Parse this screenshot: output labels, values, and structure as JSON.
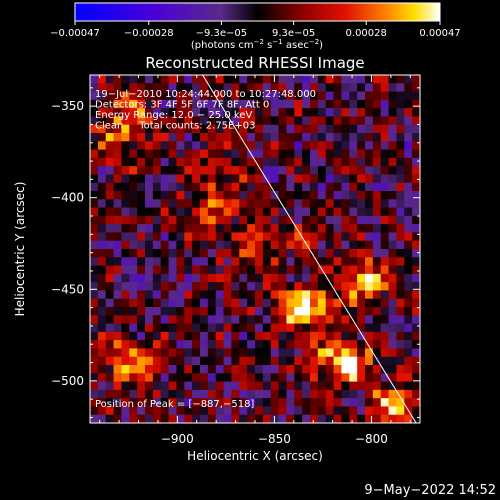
{
  "chart_data": {
    "type": "heatmap",
    "title": "Reconstructed RHESSI Image",
    "xlabel": "Heliocentric X (arcsec)",
    "ylabel": "Heliocentric Y (arcsec)",
    "xlim": [
      -945,
      -775
    ],
    "ylim": [
      -523,
      -333
    ],
    "x_ticks": [
      {
        "value": -900,
        "label": "−900"
      },
      {
        "value": -850,
        "label": "−850"
      },
      {
        "value": -800,
        "label": "−800"
      }
    ],
    "y_ticks": [
      {
        "value": -350,
        "label": "−350"
      },
      {
        "value": -400,
        "label": "−400"
      },
      {
        "value": -450,
        "label": "−450"
      },
      {
        "value": -500,
        "label": "−500"
      }
    ],
    "colorbar": {
      "min": -0.00047,
      "max": 0.00047,
      "ticks": [
        {
          "value": -0.00047,
          "label": "−0.00047"
        },
        {
          "value": -0.00028,
          "label": "−0.00028"
        },
        {
          "value": -9.3e-05,
          "label": "−9.3e−05"
        },
        {
          "value": 9.3e-05,
          "label": "9.3e−05"
        },
        {
          "value": 0.00028,
          "label": "0.00028"
        },
        {
          "value": 0.00047,
          "label": "0.00047"
        }
      ],
      "unit_prefix": "(photons cm",
      "unit_sup1": "−2",
      "unit_mid": " s",
      "unit_sup2": "−1",
      "unit_mid2": " asec",
      "unit_sup3": "−2",
      "unit_suffix": ")"
    },
    "limb_line": {
      "x": [
        -887,
        -777
      ],
      "y": [
        -333,
        -523
      ]
    },
    "peak": {
      "x": -887,
      "y": -518
    },
    "sources": [
      {
        "x": -835,
        "y": -460,
        "amp": 0.00047,
        "sx": 10,
        "sy": 8
      },
      {
        "x": -815,
        "y": -490,
        "amp": 0.0004,
        "sx": 12,
        "sy": 9
      },
      {
        "x": -805,
        "y": -445,
        "amp": 0.00036,
        "sx": 9,
        "sy": 9
      },
      {
        "x": -790,
        "y": -515,
        "amp": 0.00033,
        "sx": 9,
        "sy": 8
      },
      {
        "x": -925,
        "y": -490,
        "amp": 0.0003,
        "sx": 11,
        "sy": 9
      },
      {
        "x": -928,
        "y": -360,
        "amp": 0.0003,
        "sx": 10,
        "sy": 13
      },
      {
        "x": -880,
        "y": -400,
        "amp": 0.00018,
        "sx": 14,
        "sy": 18
      },
      {
        "x": -860,
        "y": -430,
        "amp": 0.0002,
        "sx": 8,
        "sy": 8
      },
      {
        "x": -835,
        "y": -420,
        "amp": 0.00015,
        "sx": 7,
        "sy": 7
      }
    ],
    "annotations": [
      "19−Jul−2010 10:24:44.000 to 10:27:48.000",
      "Detectors: 3F 4F 5F 6F 7F 8F, Att 0",
      "Energy Range: 12.0 − 25.0 keV",
      "Clean     Total counts: 2.75E+03"
    ],
    "peak_label": "Position of Peak = [−887,−518]"
  },
  "footer": {
    "timestamp": "9−May−2022 14:52"
  }
}
